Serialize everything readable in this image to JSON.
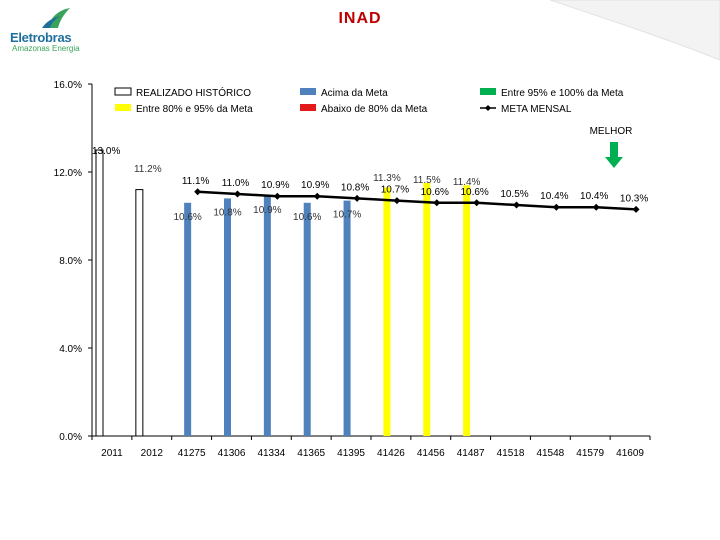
{
  "header": {
    "title": "INAD",
    "logo_name": "Eletrobras",
    "logo_subtitle": "Amazonas Energia"
  },
  "colors": {
    "title": "#c00000",
    "historic": "#ffffff",
    "acima": "#4f81bd",
    "entre_95_100": "#00b050",
    "entre_80_95": "#ffff00",
    "abaixo": "#e31a1c",
    "meta_line": "#000000",
    "melhor_arrow": "#00b050"
  },
  "annotation": {
    "melhor": "MELHOR",
    "meta_ref": "13.0%"
  },
  "chart_data": {
    "type": "bar",
    "title": "INAD",
    "ylim": [
      0,
      16
    ],
    "yticks": [
      "0.0%",
      "4.0%",
      "8.0%",
      "12.0%",
      "16.0%"
    ],
    "legend_position": "top",
    "legend": [
      {
        "key": "historico",
        "label": "REALIZADO HISTÓRICO",
        "kind": "box"
      },
      {
        "key": "acima",
        "label": "Acima da Meta",
        "kind": "box"
      },
      {
        "key": "entre9599",
        "label": "Entre 95% e 100% da Meta",
        "kind": "box"
      },
      {
        "key": "entre8095",
        "label": "Entre 80% e 95% da Meta",
        "kind": "box"
      },
      {
        "key": "abaixo",
        "label": "Abaixo de 80% da Meta",
        "kind": "box"
      },
      {
        "key": "meta",
        "label": "META MENSAL",
        "kind": "line"
      }
    ],
    "categories": [
      "2011",
      "2012",
      "41275",
      "41306",
      "41334",
      "41365",
      "41395",
      "41426",
      "41456",
      "41487",
      "41518",
      "41548",
      "41579",
      "41609"
    ],
    "realizado": [
      13.0,
      11.2,
      10.6,
      10.8,
      10.9,
      10.6,
      10.7,
      11.3,
      11.5,
      11.4,
      null,
      null,
      null,
      null
    ],
    "realizado_status": [
      "historico",
      "historico",
      "acima",
      "acima",
      "acima",
      "acima",
      "acima",
      "entre8095",
      "entre8095",
      "entre8095",
      null,
      null,
      null,
      null
    ],
    "realizado_labels": [
      "13.0%",
      "11.2%",
      "10.6%",
      "10.8%",
      "10.9%",
      "10.6%",
      "10.7%",
      "11.3%",
      "11.5%",
      "11.4%",
      "",
      "",
      "",
      ""
    ],
    "meta": [
      null,
      null,
      11.1,
      11.0,
      10.9,
      10.9,
      10.8,
      10.7,
      10.6,
      10.6,
      10.5,
      10.4,
      10.4,
      10.3
    ],
    "meta_labels": [
      "",
      "",
      "11.1%",
      "11.0%",
      "10.9%",
      "10.9%",
      "10.8%",
      "10.7%",
      "10.6%",
      "10.6%",
      "10.5%",
      "10.4%",
      "10.4%",
      "10.3%"
    ]
  }
}
